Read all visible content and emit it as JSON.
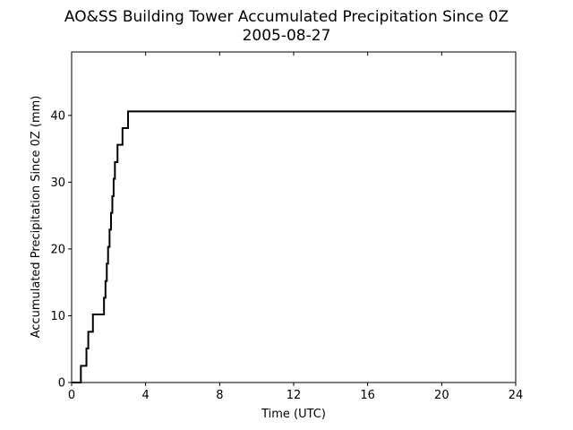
{
  "chart_data": {
    "type": "line",
    "title": "AO&SS Building Tower Accumulated Precipitation Since 0Z",
    "subtitle": "2005-08-27",
    "xlabel": "Time (UTC)",
    "ylabel": "Accumulated Precipitation Since 0Z (mm)",
    "xlim": [
      0,
      24
    ],
    "ylim": [
      0,
      49.5
    ],
    "xticks": [
      0,
      4,
      8,
      12,
      16,
      20,
      24
    ],
    "yticks": [
      0,
      10,
      20,
      30,
      40
    ],
    "grid": false,
    "step": "post",
    "series": [
      {
        "color": "#000000",
        "x": [
          0.0,
          0.5,
          0.8,
          0.9,
          1.15,
          1.75,
          1.83,
          1.9,
          1.97,
          2.05,
          2.13,
          2.2,
          2.27,
          2.34,
          2.4,
          2.48,
          2.65,
          2.75,
          3.0,
          3.05,
          24.0
        ],
        "y": [
          0.0,
          2.5,
          5.1,
          7.6,
          10.2,
          12.7,
          15.2,
          17.8,
          20.3,
          22.9,
          25.4,
          27.9,
          30.5,
          33.0,
          33.0,
          35.6,
          35.6,
          38.1,
          38.1,
          40.6,
          40.6
        ]
      }
    ]
  }
}
